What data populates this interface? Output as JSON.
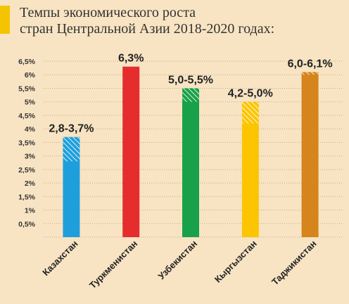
{
  "title": {
    "line1": "Темпы экономического роста",
    "line2": "стран Центральной Азии 2018-2020 годах:"
  },
  "chart_data": {
    "type": "bar",
    "categories": [
      "Казахстан",
      "Туркменистан",
      "Узбекистан",
      "Кыргызстан",
      "Таджикистан"
    ],
    "ranges": [
      [
        2.8,
        3.7
      ],
      [
        6.3,
        6.3
      ],
      [
        5.0,
        5.5
      ],
      [
        4.2,
        5.0
      ],
      [
        6.0,
        6.1
      ]
    ],
    "data_labels": [
      "2,8-3,7%",
      "6,3%",
      "5,0-5,5%",
      "4,2-5,0%",
      "6,0-6,1%"
    ],
    "colors": [
      "#1e9fdc",
      "#e52d2d",
      "#18a148",
      "#fcc500",
      "#d6851c"
    ],
    "ylim": [
      0,
      6.5
    ],
    "yticks": [
      "0,5%",
      "1%",
      "1,5%",
      "2%",
      "2,5%",
      "3%",
      "3,5%",
      "4%",
      "4,5%",
      "5%",
      "5,5%",
      "6%",
      "6,5%"
    ],
    "grid": true,
    "xlabel": "",
    "ylabel": ""
  }
}
